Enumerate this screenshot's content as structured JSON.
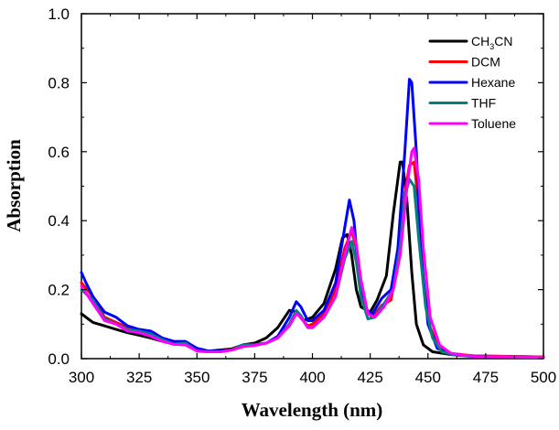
{
  "chart_data": {
    "type": "line",
    "title": "",
    "xlabel": "Wavelength (nm)",
    "ylabel": "Absorption",
    "xlim": [
      300,
      500
    ],
    "ylim": [
      0.0,
      1.0
    ],
    "x_ticks": [
      300,
      325,
      350,
      375,
      400,
      425,
      450,
      475,
      500
    ],
    "x_tick_labels": [
      "300",
      "325",
      "350",
      "375",
      "400",
      "425",
      "450",
      "475",
      "500"
    ],
    "y_ticks": [
      0.0,
      0.2,
      0.4,
      0.6,
      0.8,
      1.0
    ],
    "y_tick_labels": [
      "0.0",
      "0.2",
      "0.4",
      "0.6",
      "0.8",
      "1.0"
    ],
    "grid": false,
    "legend_position": "top-right",
    "series": [
      {
        "name": "CH3CN",
        "label_main": "CH",
        "label_sub": "3",
        "label_tail": "CN",
        "color": "#000000",
        "points": [
          [
            300,
            0.13
          ],
          [
            305,
            0.105
          ],
          [
            310,
            0.095
          ],
          [
            315,
            0.085
          ],
          [
            320,
            0.075
          ],
          [
            325,
            0.068
          ],
          [
            330,
            0.06
          ],
          [
            335,
            0.05
          ],
          [
            340,
            0.042
          ],
          [
            345,
            0.04
          ],
          [
            350,
            0.03
          ],
          [
            355,
            0.022
          ],
          [
            360,
            0.025
          ],
          [
            365,
            0.028
          ],
          [
            370,
            0.04
          ],
          [
            375,
            0.045
          ],
          [
            380,
            0.06
          ],
          [
            385,
            0.09
          ],
          [
            390,
            0.14
          ],
          [
            393,
            0.135
          ],
          [
            396,
            0.11
          ],
          [
            400,
            0.12
          ],
          [
            405,
            0.16
          ],
          [
            410,
            0.26
          ],
          [
            413,
            0.35
          ],
          [
            415,
            0.36
          ],
          [
            417,
            0.3
          ],
          [
            419,
            0.2
          ],
          [
            421,
            0.15
          ],
          [
            425,
            0.135
          ],
          [
            428,
            0.17
          ],
          [
            432,
            0.24
          ],
          [
            435,
            0.42
          ],
          [
            438,
            0.57
          ],
          [
            439,
            0.57
          ],
          [
            441,
            0.45
          ],
          [
            443,
            0.25
          ],
          [
            445,
            0.1
          ],
          [
            448,
            0.04
          ],
          [
            452,
            0.02
          ],
          [
            460,
            0.012
          ],
          [
            470,
            0.008
          ],
          [
            500,
            0.005
          ]
        ]
      },
      {
        "name": "DCM",
        "label_main": "DCM",
        "color": "#ff0000",
        "points": [
          [
            300,
            0.22
          ],
          [
            305,
            0.18
          ],
          [
            310,
            0.12
          ],
          [
            315,
            0.105
          ],
          [
            320,
            0.09
          ],
          [
            325,
            0.08
          ],
          [
            330,
            0.072
          ],
          [
            335,
            0.058
          ],
          [
            340,
            0.048
          ],
          [
            345,
            0.048
          ],
          [
            350,
            0.025
          ],
          [
            355,
            0.02
          ],
          [
            360,
            0.02
          ],
          [
            365,
            0.025
          ],
          [
            370,
            0.035
          ],
          [
            375,
            0.04
          ],
          [
            380,
            0.045
          ],
          [
            385,
            0.06
          ],
          [
            390,
            0.1
          ],
          [
            393,
            0.13
          ],
          [
            395,
            0.12
          ],
          [
            398,
            0.095
          ],
          [
            400,
            0.1
          ],
          [
            405,
            0.13
          ],
          [
            410,
            0.2
          ],
          [
            414,
            0.32
          ],
          [
            417,
            0.37
          ],
          [
            419,
            0.32
          ],
          [
            421,
            0.22
          ],
          [
            423,
            0.14
          ],
          [
            426,
            0.12
          ],
          [
            430,
            0.155
          ],
          [
            434,
            0.17
          ],
          [
            437,
            0.28
          ],
          [
            440,
            0.48
          ],
          [
            442,
            0.56
          ],
          [
            444,
            0.57
          ],
          [
            446,
            0.44
          ],
          [
            448,
            0.22
          ],
          [
            451,
            0.09
          ],
          [
            455,
            0.03
          ],
          [
            460,
            0.015
          ],
          [
            470,
            0.008
          ],
          [
            500,
            0.005
          ]
        ]
      },
      {
        "name": "Hexane",
        "label_main": "Hexane",
        "color": "#0000ff",
        "points": [
          [
            300,
            0.25
          ],
          [
            302,
            0.22
          ],
          [
            305,
            0.18
          ],
          [
            310,
            0.135
          ],
          [
            315,
            0.12
          ],
          [
            320,
            0.095
          ],
          [
            325,
            0.085
          ],
          [
            330,
            0.08
          ],
          [
            335,
            0.06
          ],
          [
            340,
            0.05
          ],
          [
            345,
            0.05
          ],
          [
            350,
            0.03
          ],
          [
            355,
            0.022
          ],
          [
            360,
            0.022
          ],
          [
            365,
            0.025
          ],
          [
            370,
            0.04
          ],
          [
            375,
            0.04
          ],
          [
            380,
            0.045
          ],
          [
            385,
            0.065
          ],
          [
            390,
            0.12
          ],
          [
            393,
            0.165
          ],
          [
            395,
            0.15
          ],
          [
            398,
            0.11
          ],
          [
            400,
            0.11
          ],
          [
            405,
            0.14
          ],
          [
            410,
            0.22
          ],
          [
            414,
            0.38
          ],
          [
            416,
            0.46
          ],
          [
            418,
            0.4
          ],
          [
            420,
            0.25
          ],
          [
            423,
            0.14
          ],
          [
            426,
            0.13
          ],
          [
            430,
            0.175
          ],
          [
            434,
            0.2
          ],
          [
            437,
            0.32
          ],
          [
            440,
            0.6
          ],
          [
            442,
            0.81
          ],
          [
            443,
            0.8
          ],
          [
            445,
            0.6
          ],
          [
            447,
            0.3
          ],
          [
            450,
            0.1
          ],
          [
            454,
            0.03
          ],
          [
            460,
            0.012
          ],
          [
            470,
            0.006
          ],
          [
            500,
            0.004
          ]
        ]
      },
      {
        "name": "THF",
        "label_main": "THF",
        "color": "#008080",
        "points": [
          [
            300,
            0.2
          ],
          [
            305,
            0.17
          ],
          [
            310,
            0.115
          ],
          [
            315,
            0.1
          ],
          [
            320,
            0.085
          ],
          [
            325,
            0.08
          ],
          [
            330,
            0.072
          ],
          [
            335,
            0.055
          ],
          [
            340,
            0.042
          ],
          [
            345,
            0.045
          ],
          [
            350,
            0.022
          ],
          [
            355,
            0.02
          ],
          [
            360,
            0.02
          ],
          [
            365,
            0.025
          ],
          [
            370,
            0.04
          ],
          [
            375,
            0.04
          ],
          [
            380,
            0.045
          ],
          [
            385,
            0.06
          ],
          [
            390,
            0.1
          ],
          [
            393,
            0.14
          ],
          [
            395,
            0.125
          ],
          [
            398,
            0.09
          ],
          [
            400,
            0.09
          ],
          [
            405,
            0.12
          ],
          [
            410,
            0.18
          ],
          [
            414,
            0.29
          ],
          [
            417,
            0.34
          ],
          [
            419,
            0.28
          ],
          [
            421,
            0.18
          ],
          [
            424,
            0.115
          ],
          [
            427,
            0.12
          ],
          [
            431,
            0.16
          ],
          [
            435,
            0.2
          ],
          [
            438,
            0.33
          ],
          [
            440,
            0.47
          ],
          [
            442,
            0.52
          ],
          [
            444,
            0.5
          ],
          [
            446,
            0.35
          ],
          [
            449,
            0.15
          ],
          [
            452,
            0.06
          ],
          [
            456,
            0.02
          ],
          [
            462,
            0.01
          ],
          [
            470,
            0.006
          ],
          [
            500,
            0.004
          ]
        ]
      },
      {
        "name": "Toluene",
        "label_main": "Toluene",
        "color": "#ff00ff",
        "points": [
          [
            300,
            0.21
          ],
          [
            305,
            0.16
          ],
          [
            310,
            0.11
          ],
          [
            315,
            0.1
          ],
          [
            320,
            0.08
          ],
          [
            325,
            0.075
          ],
          [
            330,
            0.065
          ],
          [
            335,
            0.05
          ],
          [
            340,
            0.042
          ],
          [
            345,
            0.04
          ],
          [
            350,
            0.022
          ],
          [
            355,
            0.02
          ],
          [
            360,
            0.02
          ],
          [
            365,
            0.025
          ],
          [
            370,
            0.035
          ],
          [
            375,
            0.038
          ],
          [
            380,
            0.045
          ],
          [
            385,
            0.06
          ],
          [
            390,
            0.095
          ],
          [
            393,
            0.13
          ],
          [
            395,
            0.12
          ],
          [
            398,
            0.09
          ],
          [
            400,
            0.09
          ],
          [
            405,
            0.12
          ],
          [
            410,
            0.18
          ],
          [
            414,
            0.3
          ],
          [
            417,
            0.38
          ],
          [
            419,
            0.33
          ],
          [
            421,
            0.23
          ],
          [
            424,
            0.13
          ],
          [
            427,
            0.12
          ],
          [
            431,
            0.15
          ],
          [
            435,
            0.2
          ],
          [
            438,
            0.3
          ],
          [
            441,
            0.5
          ],
          [
            443,
            0.6
          ],
          [
            444,
            0.61
          ],
          [
            446,
            0.52
          ],
          [
            448,
            0.32
          ],
          [
            451,
            0.12
          ],
          [
            455,
            0.04
          ],
          [
            460,
            0.015
          ],
          [
            470,
            0.006
          ],
          [
            500,
            0.004
          ]
        ]
      }
    ]
  }
}
